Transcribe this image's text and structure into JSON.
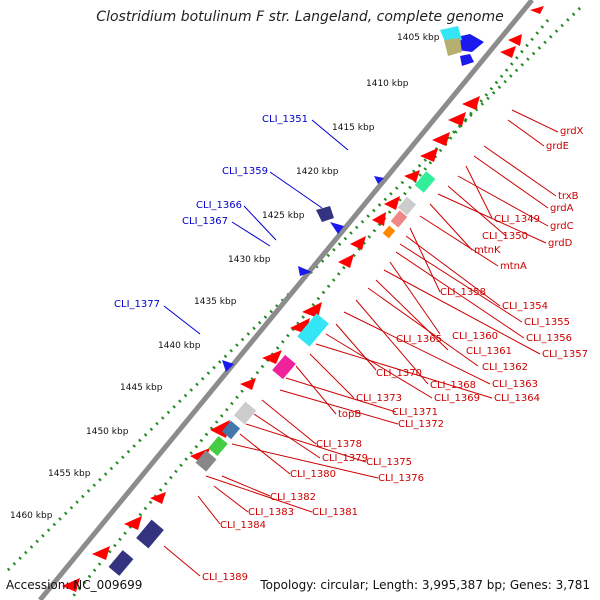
{
  "title": "Clostridium botulinum F str. Langeland, complete genome",
  "accession": "Accession: NC_009699",
  "summary": "Topology: circular; Length: 3,995,387 bp; Genes: 3,781",
  "colors": {
    "backbone": "#8c8c8c",
    "tick": "#228b22",
    "forward_label": "#0000cc",
    "reverse_label": "#cc0000",
    "gene_red": "#ff0000",
    "gene_blue": "#1a1aee"
  },
  "kbp_ticks": [
    "1405 kbp",
    "1410 kbp",
    "1415 kbp",
    "1420 kbp",
    "1425 kbp",
    "1430 kbp",
    "1435 kbp",
    "1440 kbp",
    "1445 kbp",
    "1450 kbp",
    "1455 kbp",
    "1460 kbp"
  ],
  "left_labels": [
    "CLI_1351",
    "CLI_1359",
    "CLI_1366",
    "CLI_1367",
    "CLI_1377"
  ],
  "right_labels": [
    "grdX",
    "grdE",
    "trxB",
    "grdA",
    "CLI_1349",
    "grdC",
    "CLI_1350",
    "grdD",
    "mtnK",
    "mtnA",
    "CLI_1358",
    "CLI_1354",
    "CLI_1355",
    "CLI_1356",
    "CLI_1360",
    "CLI_1357",
    "CLI_1365",
    "CLI_1361",
    "CLI_1362",
    "CLI_1370",
    "CLI_1368",
    "CLI_1363",
    "CLI_1369",
    "CLI_1364",
    "CLI_1373",
    "topB",
    "CLI_1371",
    "CLI_1372",
    "CLI_1378",
    "CLI_1379",
    "CLI_1375",
    "CLI_1380",
    "CLI_1376",
    "CLI_1382",
    "CLI_1383",
    "CLI_1381",
    "CLI_1384",
    "CLI_1389"
  ]
}
